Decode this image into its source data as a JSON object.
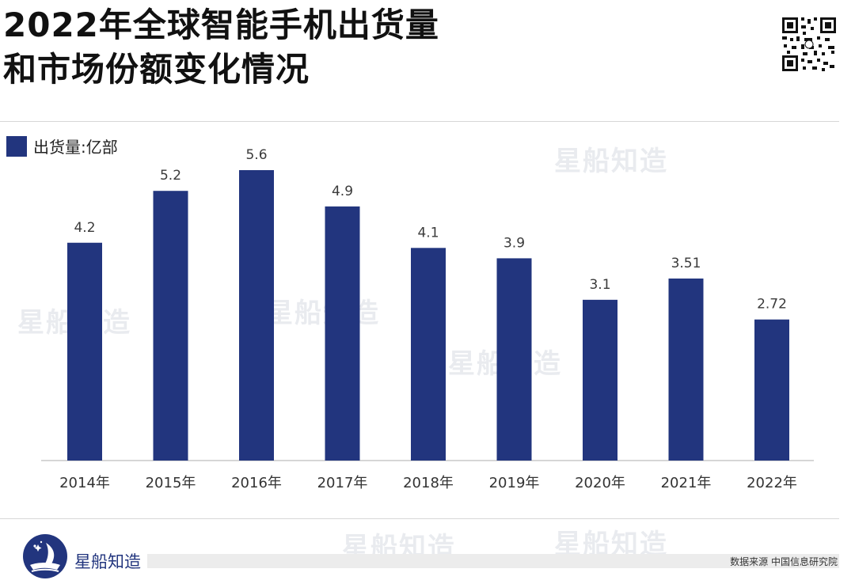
{
  "title_lines": [
    "2022年全球智能手机出货量",
    "和市场份额变化情况"
  ],
  "legend": {
    "label": "出货量:亿部",
    "color": "#22357e"
  },
  "chart_data": {
    "type": "bar",
    "categories": [
      "2014年",
      "2015年",
      "2016年",
      "2017年",
      "2018年",
      "2019年",
      "2020年",
      "2021年",
      "2022年"
    ],
    "series": [
      {
        "name": "出货量:亿部",
        "values": [
          4.2,
          5.2,
          5.6,
          4.9,
          4.1,
          3.9,
          3.1,
          3.51,
          2.72
        ],
        "color": "#22357e"
      }
    ],
    "data_labels": [
      "4.2",
      "5.2",
      "5.6",
      "4.9",
      "4.1",
      "3.9",
      "3.1",
      "3.51",
      "2.72"
    ],
    "title": "",
    "xlabel": "",
    "ylabel": "",
    "ylim": [
      0,
      5.6
    ],
    "grid": false,
    "legend_position": "top-left"
  },
  "watermark_text": "星船知造",
  "footer": {
    "brand": "星船知造",
    "source": "数据来源 中国信息研究院"
  },
  "icons": {
    "qr": "qr-code-icon",
    "logo": "ship-logo-icon"
  }
}
